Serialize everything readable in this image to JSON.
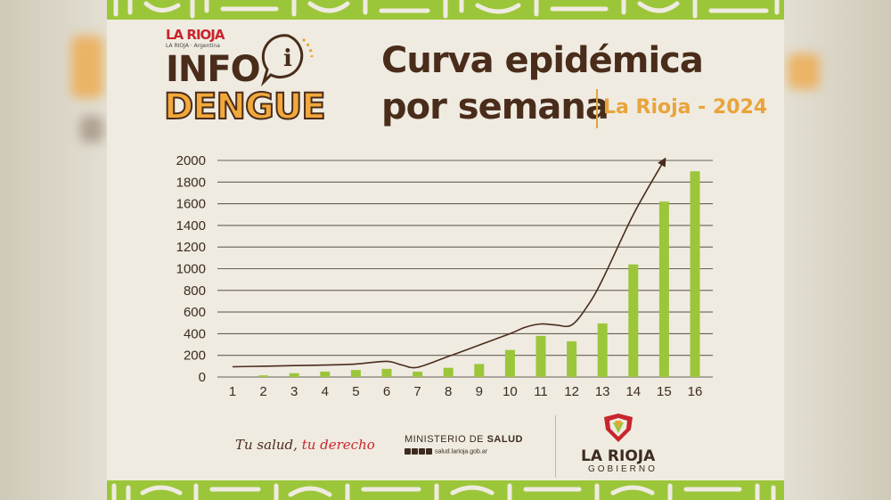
{
  "brand": {
    "logo_text": "LA RIOJA",
    "logo_sub": "LA RIOJA · Argentina"
  },
  "header": {
    "info_word": "INFO",
    "dengue_word": "DENGUE",
    "title_line1": "Curva epidémica",
    "title_line2": "por semana",
    "subtitle": "La Rioja - 2024",
    "info_icon_symbol": "i"
  },
  "colors": {
    "bar": "#9cc63a",
    "curve": "#4a2c1b",
    "grid": "#6a5f55",
    "title": "#4a2c1b",
    "accent_orange": "#e9a43a",
    "accent_red": "#c9252d"
  },
  "chart_data": {
    "type": "bar",
    "categories": [
      "1",
      "2",
      "3",
      "4",
      "5",
      "6",
      "7",
      "8",
      "9",
      "10",
      "11",
      "12",
      "13",
      "14",
      "15",
      "16"
    ],
    "values": [
      0,
      15,
      35,
      50,
      65,
      75,
      50,
      85,
      120,
      250,
      380,
      330,
      495,
      1040,
      1620,
      1900
    ],
    "ylim": [
      0,
      2000
    ],
    "yticks": [
      0,
      200,
      400,
      600,
      800,
      1000,
      1200,
      1400,
      1600,
      1800,
      2000
    ],
    "trend_curve": {
      "x": [
        1,
        2,
        3,
        4,
        5,
        6,
        6.5,
        7,
        8,
        9,
        10,
        10.5,
        11,
        11.5,
        12,
        12.5,
        13,
        14,
        15
      ],
      "y": [
        95,
        100,
        105,
        110,
        120,
        145,
        110,
        90,
        190,
        295,
        400,
        460,
        490,
        480,
        480,
        650,
        900,
        1500,
        2000
      ]
    },
    "grid": true,
    "xlabel": "",
    "ylabel": ""
  },
  "footer": {
    "slogan_part1": "Tu salud,",
    "slogan_part2": "tu derecho",
    "ministry_prefix": "MINISTERIO DE",
    "ministry_bold": "SALUD",
    "ministry_web": "salud.larioja.gob.ar",
    "gov_name": "LA RIOJA",
    "gov_sub": "GOBIERNO"
  }
}
